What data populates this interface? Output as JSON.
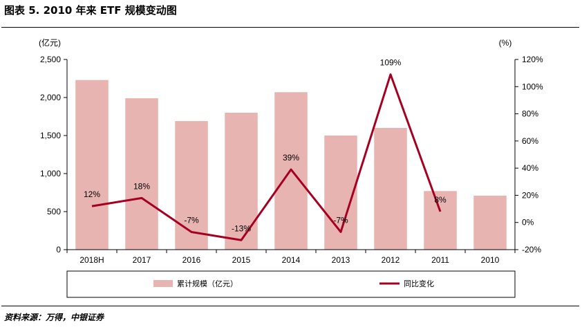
{
  "header": {
    "title": "图表 5. 2010 年来 ETF 规模变动图"
  },
  "footer": {
    "source": "资料来源：万得，中银证券"
  },
  "chart_data": {
    "type": "bar",
    "categories": [
      "2018H",
      "2017",
      "2016",
      "2015",
      "2014",
      "2013",
      "2012",
      "2011",
      "2010"
    ],
    "series": [
      {
        "name": "累计规模（亿元）",
        "type": "bar",
        "axis": "left",
        "color": "#e8b4b2",
        "values": [
          2230,
          1990,
          1690,
          1800,
          2070,
          1500,
          1600,
          770,
          710
        ]
      },
      {
        "name": "同比变化",
        "type": "line",
        "axis": "right",
        "color": "#a50021",
        "values": [
          12,
          18,
          -7,
          -13,
          39,
          -7,
          109,
          8,
          null
        ],
        "labels": [
          "12%",
          "18%",
          "-7%",
          "-13%",
          "39%",
          "-7%",
          "109%",
          "8%",
          ""
        ]
      }
    ],
    "left_axis": {
      "unit": "(亿元)",
      "min": 0,
      "max": 2500,
      "step": 500,
      "tick_labels": [
        "0",
        "500",
        "1,000",
        "1,500",
        "2,000",
        "2,500"
      ]
    },
    "right_axis": {
      "unit": "(%)",
      "min": -20,
      "max": 120,
      "step": 20,
      "tick_labels": [
        "-20%",
        "0%",
        "20%",
        "40%",
        "60%",
        "80%",
        "100%",
        "120%"
      ]
    },
    "grid": false,
    "legend_position": "bottom"
  }
}
